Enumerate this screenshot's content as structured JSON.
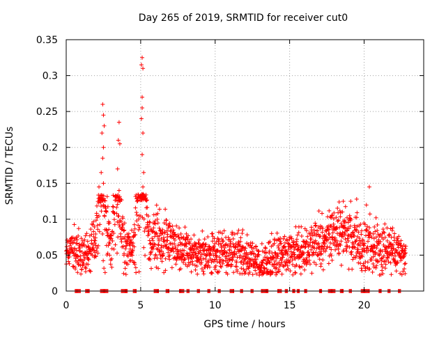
{
  "chart_data": {
    "type": "scatter",
    "title": "Day 265 of 2019, SRMTID for receiver cut0",
    "xlabel": "GPS time / hours",
    "ylabel": "SRMTID / TECUs",
    "xlim": [
      0,
      24
    ],
    "ylim": [
      0,
      0.35
    ],
    "xticks": [
      "0",
      "5",
      "10",
      "15",
      "20"
    ],
    "xtick_values": [
      0,
      5,
      10,
      15,
      20
    ],
    "yticks": [
      "0",
      "0.05",
      "0.1",
      "0.15",
      "0.2",
      "0.25",
      "0.3",
      "0.35"
    ],
    "ytick_values": [
      0,
      0.05,
      0.1,
      0.15,
      0.2,
      0.25,
      0.3,
      0.35
    ],
    "grid": true,
    "marker": "+",
    "series_color": "#ff0000",
    "series": [
      {
        "name": "SRMTID",
        "profile": [
          {
            "t": 0.0,
            "level": 0.058,
            "spread": 0.018
          },
          {
            "t": 0.5,
            "level": 0.06,
            "spread": 0.02
          },
          {
            "t": 1.0,
            "level": 0.045,
            "spread": 0.018
          },
          {
            "t": 1.5,
            "level": 0.05,
            "spread": 0.02
          },
          {
            "t": 2.0,
            "level": 0.07,
            "spread": 0.03
          },
          {
            "t": 2.4,
            "level": 0.17,
            "spread": 0.07
          },
          {
            "t": 2.7,
            "level": 0.09,
            "spread": 0.04
          },
          {
            "t": 3.0,
            "level": 0.06,
            "spread": 0.02
          },
          {
            "t": 3.5,
            "level": 0.15,
            "spread": 0.07
          },
          {
            "t": 3.8,
            "level": 0.07,
            "spread": 0.03
          },
          {
            "t": 4.5,
            "level": 0.055,
            "spread": 0.015
          },
          {
            "t": 5.1,
            "level": 0.2,
            "spread": 0.1
          },
          {
            "t": 5.5,
            "level": 0.07,
            "spread": 0.025
          },
          {
            "t": 6.5,
            "level": 0.075,
            "spread": 0.025
          },
          {
            "t": 7.5,
            "level": 0.06,
            "spread": 0.02
          },
          {
            "t": 9.0,
            "level": 0.05,
            "spread": 0.02
          },
          {
            "t": 10.5,
            "level": 0.055,
            "spread": 0.022
          },
          {
            "t": 12.0,
            "level": 0.05,
            "spread": 0.02
          },
          {
            "t": 13.0,
            "level": 0.035,
            "spread": 0.015
          },
          {
            "t": 14.0,
            "level": 0.05,
            "spread": 0.02
          },
          {
            "t": 15.0,
            "level": 0.055,
            "spread": 0.02
          },
          {
            "t": 16.0,
            "level": 0.06,
            "spread": 0.022
          },
          {
            "t": 17.0,
            "level": 0.07,
            "spread": 0.025
          },
          {
            "t": 18.0,
            "level": 0.08,
            "spread": 0.028
          },
          {
            "t": 19.0,
            "level": 0.085,
            "spread": 0.028
          },
          {
            "t": 19.7,
            "level": 0.06,
            "spread": 0.025
          },
          {
            "t": 20.3,
            "level": 0.065,
            "spread": 0.03
          },
          {
            "t": 21.0,
            "level": 0.055,
            "spread": 0.022
          },
          {
            "t": 22.0,
            "level": 0.06,
            "spread": 0.02
          },
          {
            "t": 22.8,
            "level": 0.05,
            "spread": 0.015
          }
        ],
        "spikes": [
          {
            "x": 2.45,
            "y": 0.26
          },
          {
            "x": 2.5,
            "y": 0.245
          },
          {
            "x": 2.55,
            "y": 0.23
          },
          {
            "x": 2.4,
            "y": 0.22
          },
          {
            "x": 2.5,
            "y": 0.2
          },
          {
            "x": 2.45,
            "y": 0.185
          },
          {
            "x": 2.35,
            "y": 0.165
          },
          {
            "x": 2.5,
            "y": 0.15
          },
          {
            "x": 2.2,
            "y": 0.145
          },
          {
            "x": 3.55,
            "y": 0.235
          },
          {
            "x": 3.5,
            "y": 0.21
          },
          {
            "x": 3.6,
            "y": 0.205
          },
          {
            "x": 3.45,
            "y": 0.17
          },
          {
            "x": 3.55,
            "y": 0.14
          },
          {
            "x": 3.5,
            "y": 0.13
          },
          {
            "x": 5.1,
            "y": 0.325
          },
          {
            "x": 5.05,
            "y": 0.315
          },
          {
            "x": 5.15,
            "y": 0.31
          },
          {
            "x": 5.1,
            "y": 0.27
          },
          {
            "x": 5.1,
            "y": 0.255
          },
          {
            "x": 5.05,
            "y": 0.24
          },
          {
            "x": 5.15,
            "y": 0.22
          },
          {
            "x": 5.1,
            "y": 0.19
          },
          {
            "x": 5.2,
            "y": 0.165
          },
          {
            "x": 5.15,
            "y": 0.145
          },
          {
            "x": 20.35,
            "y": 0.145
          },
          {
            "x": 19.1,
            "y": 0.125
          },
          {
            "x": 18.6,
            "y": 0.125
          },
          {
            "x": 19.5,
            "y": 0.128
          }
        ]
      }
    ],
    "zero_level_intervals": [
      [
        0.6,
        1.0
      ],
      [
        1.3,
        1.6
      ],
      [
        2.3,
        2.8
      ],
      [
        3.7,
        4.1
      ],
      [
        4.5,
        4.7
      ],
      [
        5.9,
        6.2
      ],
      [
        6.7,
        6.9
      ],
      [
        7.6,
        7.9
      ],
      [
        8.1,
        8.3
      ],
      [
        8.8,
        9.0
      ],
      [
        9.5,
        9.7
      ],
      [
        10.2,
        10.4
      ],
      [
        11.0,
        11.3
      ],
      [
        11.7,
        11.9
      ],
      [
        12.4,
        12.6
      ],
      [
        13.1,
        13.6
      ],
      [
        14.2,
        14.5
      ],
      [
        14.7,
        14.9
      ],
      [
        15.2,
        15.4
      ],
      [
        15.5,
        15.7
      ],
      [
        16.0,
        16.2
      ],
      [
        17.0,
        17.2
      ],
      [
        17.6,
        18.1
      ],
      [
        18.4,
        18.6
      ],
      [
        19.0,
        19.2
      ],
      [
        19.8,
        20.4
      ],
      [
        21.0,
        21.2
      ],
      [
        21.6,
        21.8
      ],
      [
        22.3,
        22.5
      ]
    ]
  }
}
